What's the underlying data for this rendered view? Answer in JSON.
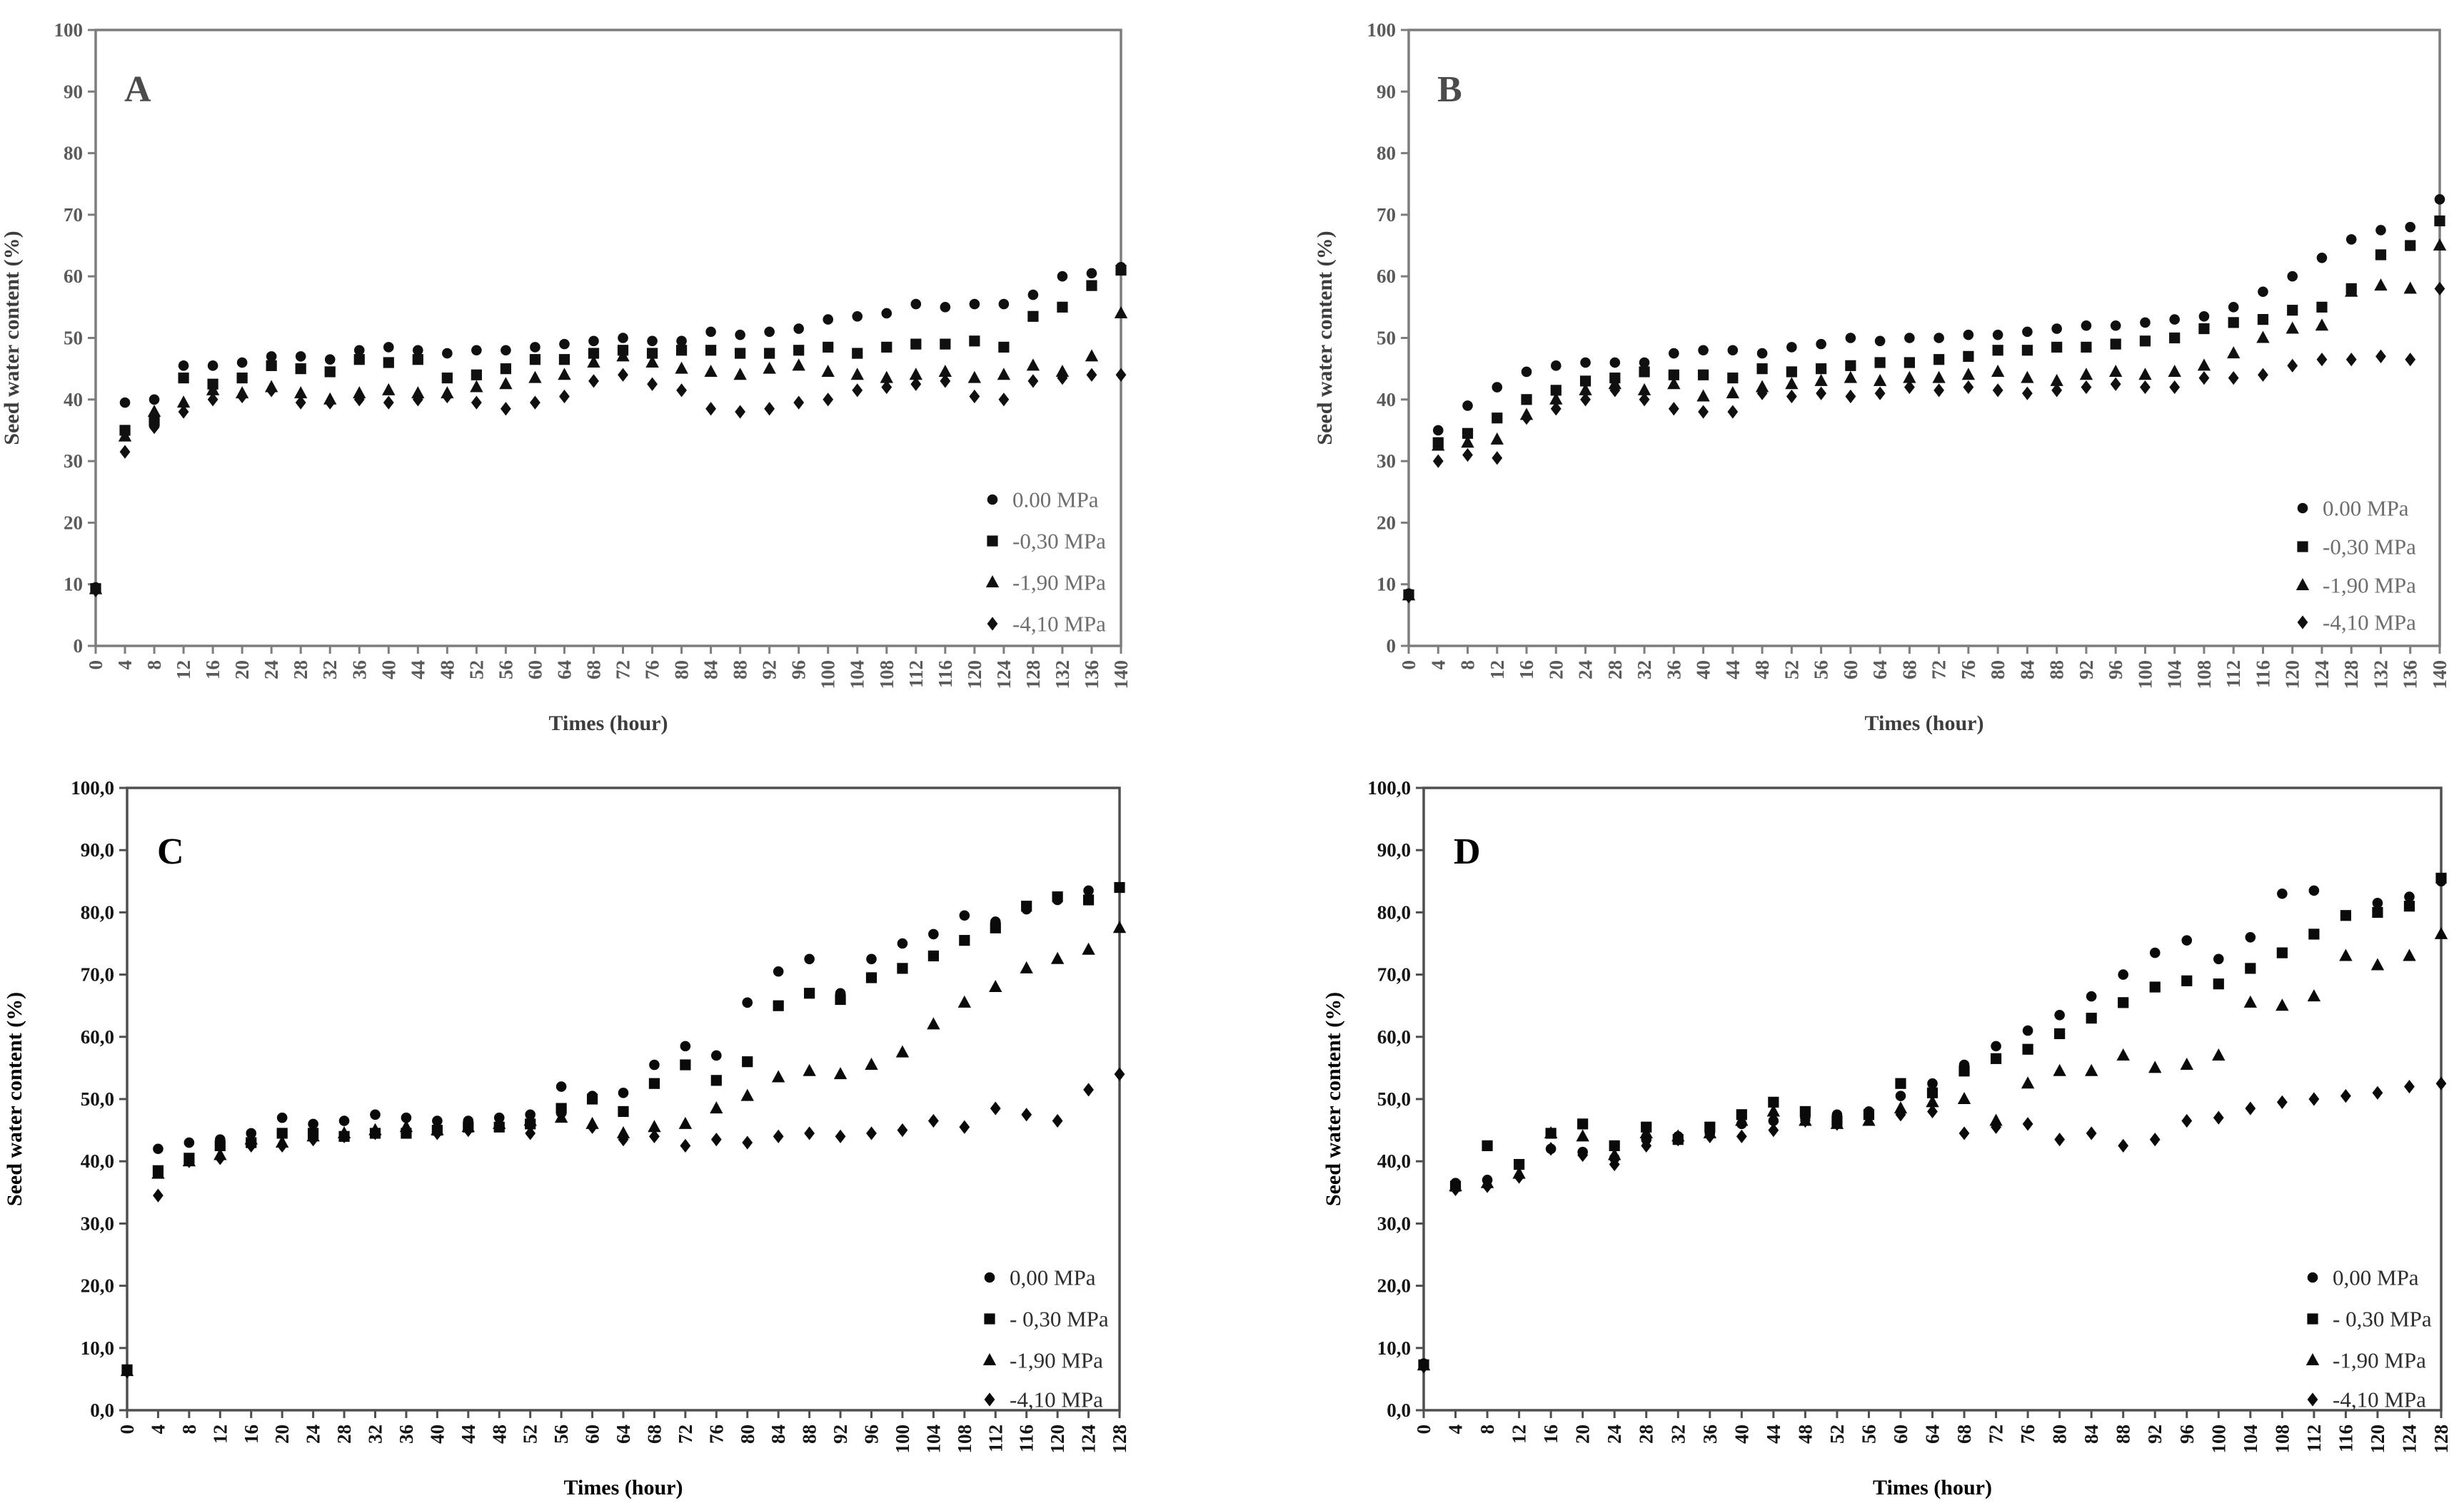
{
  "figure": {
    "background": "#ffffff",
    "description": "Four-panel scatter figure (A, B, C, D) of seed water content over imbibition time at four osmotic potentials"
  },
  "chart_data": [
    {
      "id": "A",
      "type": "scatter",
      "panel_label": "A",
      "xlabel": "Times (hour)",
      "ylabel": "Seed water content (%)",
      "ylim": [
        0,
        100
      ],
      "ytick_step": 10,
      "ytick_format": "int",
      "xlim": [
        0,
        140
      ],
      "xtick_step": 4,
      "grid": false,
      "legend_position": "right-middle",
      "colors": {
        "marker": "#101010",
        "frame": "#7d7d7d",
        "tick_text": "#5a5a5a",
        "axis_title": "#3d3d3d",
        "panel_letter": "#4b4b4b",
        "legend_text": "#6e6e6e"
      },
      "x": [
        0,
        4,
        8,
        12,
        16,
        20,
        24,
        28,
        32,
        36,
        40,
        44,
        48,
        52,
        56,
        60,
        64,
        68,
        72,
        76,
        80,
        84,
        88,
        92,
        96,
        100,
        104,
        108,
        112,
        116,
        120,
        124,
        128,
        132,
        136,
        140
      ],
      "series": [
        {
          "name": "0.00 MPa",
          "marker": "circle",
          "values": [
            9.5,
            39.5,
            40,
            45.5,
            45.5,
            46,
            47,
            47,
            46.5,
            48,
            48.5,
            48,
            47.5,
            48,
            48,
            48.5,
            49,
            49.5,
            50,
            49.5,
            49.5,
            51,
            50.5,
            51,
            51.5,
            53,
            53.5,
            54,
            55.5,
            55,
            55.5,
            55.5,
            57,
            60,
            60.5,
            61.5
          ]
        },
        {
          "name": "-0,30 MPa",
          "marker": "square",
          "values": [
            9.3,
            35,
            36.5,
            43.5,
            42.5,
            43.5,
            45.5,
            45,
            44.5,
            46.5,
            46,
            46.5,
            43.5,
            44,
            45,
            46.5,
            46.5,
            47.5,
            48,
            47.5,
            48,
            48,
            47.5,
            47.5,
            48,
            48.5,
            47.5,
            48.5,
            49,
            49,
            49.5,
            48.5,
            53.5,
            55,
            58.5,
            61
          ]
        },
        {
          "name": "-1,90 MPa",
          "marker": "triangle",
          "values": [
            9.2,
            34,
            38,
            39.5,
            41.5,
            41,
            42,
            41,
            40,
            41,
            41.5,
            41,
            41,
            42,
            42.5,
            43.5,
            44,
            46,
            47,
            46,
            45,
            44.5,
            44,
            45,
            45.5,
            44.5,
            44,
            43.5,
            44,
            44.5,
            43.5,
            44,
            45.5,
            44.5,
            47,
            54
          ]
        },
        {
          "name": "-4,10 MPa",
          "marker": "diamond",
          "values": [
            9,
            31.5,
            35.5,
            38,
            40,
            40.5,
            41.5,
            39.5,
            39.5,
            40,
            39.5,
            40,
            40.5,
            39.5,
            38.5,
            39.5,
            40.5,
            43,
            44,
            42.5,
            41.5,
            38.5,
            38,
            38.5,
            39.5,
            40,
            41.5,
            42,
            42.5,
            43,
            40.5,
            40,
            43,
            43.5,
            44,
            44
          ]
        }
      ]
    },
    {
      "id": "B",
      "type": "scatter",
      "panel_label": "B",
      "xlabel": "Times (hour)",
      "ylabel": "Seed water content (%)",
      "ylim": [
        0,
        100
      ],
      "ytick_step": 10,
      "ytick_format": "int",
      "xlim": [
        0,
        140
      ],
      "xtick_step": 4,
      "grid": false,
      "legend_position": "right-middle",
      "colors": {
        "marker": "#101010",
        "frame": "#7d7d7d",
        "tick_text": "#5a5a5a",
        "axis_title": "#3d3d3d",
        "panel_letter": "#4b4b4b",
        "legend_text": "#6e6e6e"
      },
      "x": [
        0,
        4,
        8,
        12,
        16,
        20,
        24,
        28,
        32,
        36,
        40,
        44,
        48,
        52,
        56,
        60,
        64,
        68,
        72,
        76,
        80,
        84,
        88,
        92,
        96,
        100,
        104,
        108,
        112,
        116,
        120,
        124,
        128,
        132,
        136,
        140
      ],
      "series": [
        {
          "name": "0.00 MPa",
          "marker": "circle",
          "values": [
            8.5,
            35,
            39,
            42,
            44.5,
            45.5,
            46,
            46,
            46,
            47.5,
            48,
            48,
            47.5,
            48.5,
            49,
            50,
            49.5,
            50,
            50,
            50.5,
            50.5,
            51,
            51.5,
            52,
            52,
            52.5,
            53,
            53.5,
            55,
            57.5,
            60,
            63,
            66,
            67.5,
            68,
            72.5
          ]
        },
        {
          "name": "-0,30 MPa",
          "marker": "square",
          "values": [
            8.3,
            33,
            34.5,
            37,
            40,
            41.5,
            43,
            43.5,
            44.5,
            44,
            44,
            43.5,
            45,
            44.5,
            45,
            45.5,
            46,
            46,
            46.5,
            47,
            48,
            48,
            48.5,
            48.5,
            49,
            49.5,
            50,
            51.5,
            52.5,
            53,
            54.5,
            55,
            58,
            63.5,
            65,
            69
          ]
        },
        {
          "name": "-1,90 MPa",
          "marker": "triangle",
          "values": [
            8.2,
            32.5,
            33,
            33.5,
            37.5,
            40,
            41.5,
            42.5,
            41.5,
            42.5,
            40.5,
            41,
            42,
            42.5,
            43,
            43.5,
            43,
            43.5,
            43.5,
            44,
            44.5,
            43.5,
            43,
            44,
            44.5,
            44,
            44.5,
            45.5,
            47.5,
            50,
            51.5,
            52,
            57.5,
            58.5,
            58,
            65
          ]
        },
        {
          "name": "-4,10 MPa",
          "marker": "diamond",
          "values": [
            8,
            30,
            31,
            30.5,
            37,
            38.5,
            40,
            41.5,
            40,
            38.5,
            38,
            38,
            41,
            40.5,
            41,
            40.5,
            41,
            42,
            41.5,
            42,
            41.5,
            41,
            41.5,
            42,
            42.5,
            42,
            42,
            43.5,
            43.5,
            44,
            45.5,
            46.5,
            46.5,
            47,
            46.5,
            58
          ]
        }
      ]
    },
    {
      "id": "C",
      "type": "scatter",
      "panel_label": "C",
      "xlabel": "Times (hour)",
      "ylabel": "Seed water content (%)",
      "ylim": [
        0,
        100
      ],
      "ytick_step": 10,
      "ytick_format": "comma1",
      "xlim": [
        0,
        128
      ],
      "xtick_step": 4,
      "grid": false,
      "legend_position": "right-bottom",
      "colors": {
        "marker": "#0a0a0a",
        "frame": "#4f4f4f",
        "tick_text": "#141414",
        "axis_title": "#000000",
        "panel_letter": "#000000",
        "legend_text": "#2e2e2e"
      },
      "x": [
        0,
        4,
        8,
        12,
        16,
        20,
        24,
        28,
        32,
        36,
        40,
        44,
        48,
        52,
        56,
        60,
        64,
        68,
        72,
        76,
        80,
        84,
        88,
        92,
        96,
        100,
        104,
        108,
        112,
        116,
        120,
        124,
        128
      ],
      "series": [
        {
          "name": "0,00 MPa",
          "marker": "circle",
          "values": [
            6.5,
            42,
            43,
            43.5,
            44.5,
            47,
            46,
            46.5,
            47.5,
            47,
            46.5,
            46.5,
            47,
            47.5,
            52,
            50.5,
            51,
            55.5,
            58.5,
            57,
            65.5,
            70.5,
            72.5,
            67,
            72.5,
            75,
            76.5,
            79.5,
            78.5,
            80.5,
            82,
            83.5,
            84
          ]
        },
        {
          "name": "- 0,30 MPa",
          "marker": "square",
          "values": [
            6.5,
            38.5,
            40.5,
            42.5,
            43,
            44.5,
            44.5,
            44,
            44.5,
            44.5,
            45,
            45.5,
            45.5,
            46,
            48.5,
            50,
            48,
            52.5,
            55.5,
            53,
            56,
            65,
            67,
            66,
            69.5,
            71,
            73,
            75.5,
            77.5,
            81,
            82.5,
            82,
            84
          ]
        },
        {
          "name": "-1,90 MPa",
          "marker": "triangle",
          "values": [
            6.3,
            38,
            40,
            41,
            43.5,
            43,
            44,
            44.5,
            45,
            45.5,
            45,
            45.5,
            46,
            46.5,
            47,
            46,
            44.5,
            45.5,
            46,
            48.5,
            50.5,
            53.5,
            54.5,
            54,
            55.5,
            57.5,
            62,
            65.5,
            68,
            71,
            72.5,
            74,
            77.5
          ]
        },
        {
          "name": "-4,10 MPa",
          "marker": "diamond",
          "values": [
            6.2,
            34.5,
            40,
            40.5,
            42.5,
            42.5,
            43.5,
            44,
            44.5,
            45,
            44.5,
            45,
            46,
            44.5,
            47.5,
            45.5,
            43.5,
            44,
            42.5,
            43.5,
            43,
            44,
            44.5,
            44,
            44.5,
            45,
            46.5,
            45.5,
            48.5,
            47.5,
            46.5,
            51.5,
            54
          ]
        }
      ]
    },
    {
      "id": "D",
      "type": "scatter",
      "panel_label": "D",
      "xlabel": "Times (hour)",
      "ylabel": "Seed water content (%)",
      "ylim": [
        0,
        100
      ],
      "ytick_step": 10,
      "ytick_format": "comma1",
      "xlim": [
        0,
        128
      ],
      "xtick_step": 4,
      "grid": false,
      "legend_position": "right-bottom",
      "colors": {
        "marker": "#0a0a0a",
        "frame": "#4f4f4f",
        "tick_text": "#141414",
        "axis_title": "#000000",
        "panel_letter": "#000000",
        "legend_text": "#2e2e2e"
      },
      "x": [
        0,
        4,
        8,
        12,
        16,
        20,
        24,
        28,
        32,
        36,
        40,
        44,
        48,
        52,
        56,
        60,
        64,
        68,
        72,
        76,
        80,
        84,
        88,
        92,
        96,
        100,
        104,
        108,
        112,
        116,
        120,
        124,
        128
      ],
      "series": [
        {
          "name": "0,00 MPa",
          "marker": "circle",
          "values": [
            7.5,
            36.5,
            37,
            39.5,
            42,
            41.5,
            40.5,
            43.5,
            44,
            44.5,
            46,
            46.5,
            47,
            47.5,
            48,
            50.5,
            52.5,
            55.5,
            58.5,
            61,
            63.5,
            66.5,
            70,
            73.5,
            75.5,
            72.5,
            76,
            83,
            83.5,
            79.5,
            81.5,
            82.5,
            85
          ]
        },
        {
          "name": "- 0,30 MPa",
          "marker": "square",
          "values": [
            7.3,
            36,
            42.5,
            39.5,
            44.5,
            46,
            42.5,
            45.5,
            43.5,
            45.5,
            47.5,
            49.5,
            48,
            46.5,
            47.5,
            52.5,
            51,
            54.5,
            56.5,
            58,
            60.5,
            63,
            65.5,
            68,
            69,
            68.5,
            71,
            73.5,
            76.5,
            79.5,
            80,
            81,
            85.5
          ]
        },
        {
          "name": "-1,90 MPa",
          "marker": "triangle",
          "values": [
            7.2,
            36,
            36.5,
            38,
            44.5,
            44,
            41,
            44.5,
            44,
            44.5,
            46.5,
            48,
            46.5,
            46,
            46.5,
            48.5,
            49.5,
            50,
            46.5,
            52.5,
            54.5,
            54.5,
            57,
            55,
            55.5,
            57,
            65.5,
            65,
            66.5,
            73,
            71.5,
            73,
            76.5
          ]
        },
        {
          "name": "-4,10 MPa",
          "marker": "diamond",
          "values": [
            7,
            35.5,
            36,
            37.5,
            42,
            41,
            39.5,
            42.5,
            43.5,
            44,
            44,
            45,
            46.5,
            46,
            47.5,
            47.5,
            48,
            44.5,
            45.5,
            46,
            43.5,
            44.5,
            42.5,
            43.5,
            46.5,
            47,
            48.5,
            49.5,
            50,
            50.5,
            51,
            52,
            52.5
          ]
        }
      ]
    }
  ]
}
